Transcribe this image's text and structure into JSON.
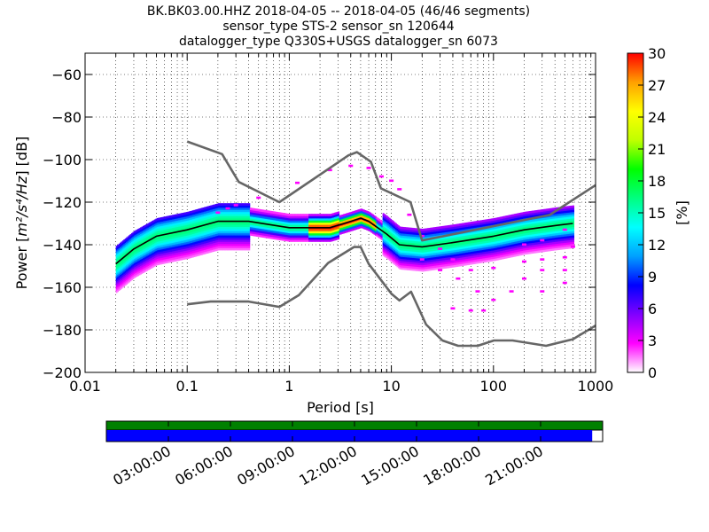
{
  "chart_data": {
    "type": "heatmap",
    "title_lines": [
      "BK.BK03.00.HHZ   2018-04-05 -- 2018-04-05  (46/46 segments)",
      "sensor_type STS-2 sensor_sn 120644",
      "datalogger_type Q330S+USGS datalogger_sn 6073"
    ],
    "xlabel": "Period [s]",
    "ylabel_prefix": "Power [",
    "ylabel_units": "m²/s⁴/Hz",
    "ylabel_suffix": "] [dB]",
    "x_scale": "log",
    "xlim": [
      0.01,
      1000
    ],
    "ylim": [
      -200,
      -50
    ],
    "x_ticks": [
      0.01,
      0.1,
      1,
      10,
      100,
      1000
    ],
    "x_tick_labels": [
      "0.01",
      "0.1",
      "1",
      "10",
      "100",
      "1000"
    ],
    "y_ticks": [
      -60,
      -80,
      -100,
      -120,
      -140,
      -160,
      -180,
      -200
    ],
    "y_tick_labels": [
      "−60",
      "−80",
      "−100",
      "−120",
      "−140",
      "−160",
      "−180",
      "−200"
    ],
    "grid": true,
    "colorbar": {
      "label": "[%]",
      "min": 0,
      "max": 30,
      "ticks": [
        0,
        3,
        6,
        9,
        12,
        15,
        18,
        21,
        24,
        27,
        30
      ],
      "tick_labels": [
        "0",
        "3",
        "6",
        "9",
        "12",
        "15",
        "18",
        "21",
        "24",
        "27",
        "30"
      ],
      "colormap": [
        "#ffffff",
        "#ff00ff",
        "#8000ff",
        "#0000ff",
        "#00a0ff",
        "#00ffff",
        "#00ff80",
        "#00ff00",
        "#c0ff00",
        "#ffff00",
        "#ffa000",
        "#ff0000"
      ]
    },
    "series": [
      {
        "name": "",
        "role": "new_high_noise_model",
        "color": "#666666",
        "points": [
          [
            0.1,
            -91.5
          ],
          [
            0.22,
            -97.4
          ],
          [
            0.32,
            -110.5
          ],
          [
            0.8,
            -120
          ],
          [
            3.8,
            -98
          ],
          [
            4.6,
            -96.5
          ],
          [
            6.3,
            -101
          ],
          [
            7.9,
            -113.5
          ],
          [
            15.4,
            -120
          ],
          [
            20,
            -138
          ],
          [
            354.8,
            -126
          ],
          [
            1000,
            -112
          ]
        ]
      },
      {
        "name": "",
        "role": "new_low_noise_model",
        "color": "#666666",
        "points": [
          [
            0.1,
            -168
          ],
          [
            0.17,
            -166.7
          ],
          [
            0.4,
            -166.7
          ],
          [
            0.8,
            -169.2
          ],
          [
            1.24,
            -163.7
          ],
          [
            2.4,
            -148.6
          ],
          [
            4.3,
            -141.1
          ],
          [
            5,
            -141.1
          ],
          [
            6,
            -149
          ],
          [
            10,
            -163
          ],
          [
            12,
            -166.2
          ],
          [
            15.6,
            -162.1
          ],
          [
            21.9,
            -177.5
          ],
          [
            31.6,
            -185
          ],
          [
            45,
            -187.5
          ],
          [
            70,
            -187.5
          ],
          [
            101,
            -185
          ],
          [
            154,
            -185
          ],
          [
            328,
            -187.5
          ],
          [
            600,
            -184.4
          ],
          [
            1000,
            -178
          ]
        ]
      },
      {
        "name": "",
        "role": "mode",
        "color": "#000000",
        "points": [
          [
            0.02,
            -149
          ],
          [
            0.03,
            -142
          ],
          [
            0.05,
            -136
          ],
          [
            0.1,
            -133
          ],
          [
            0.2,
            -129
          ],
          [
            0.4,
            -129
          ],
          [
            1,
            -132
          ],
          [
            2.5,
            -132
          ],
          [
            4,
            -129
          ],
          [
            5,
            -127.5
          ],
          [
            6,
            -129
          ],
          [
            9,
            -135
          ],
          [
            12,
            -140
          ],
          [
            20,
            -141
          ],
          [
            40,
            -139
          ],
          [
            100,
            -136
          ],
          [
            200,
            -133
          ],
          [
            400,
            -131
          ],
          [
            600,
            -130
          ]
        ]
      }
    ],
    "time_axis": {
      "tick_labels": [
        "03:00:00",
        "06:00:00",
        "09:00:00",
        "12:00:00",
        "15:00:00",
        "18:00:00",
        "21:00:00"
      ],
      "coverage_fraction": 0.979,
      "colors": {
        "data": "#0000ff",
        "gaps": "#ffffff",
        "segments": "#008000"
      }
    }
  }
}
